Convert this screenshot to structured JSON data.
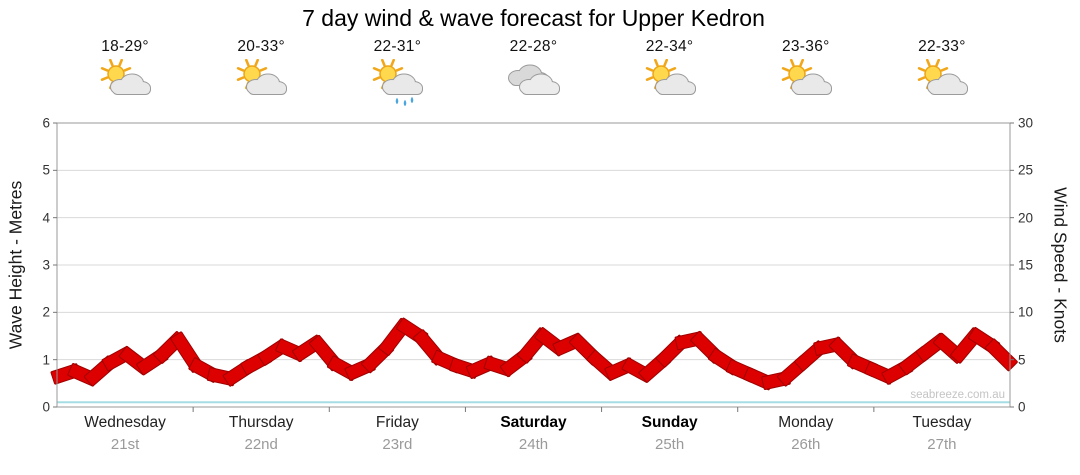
{
  "title": "7 day wind & wave forecast for Upper Kedron",
  "watermark": "seabreeze.com.au",
  "colors": {
    "wind_band": "#dd0000",
    "wind_band_outline": "#9e0000",
    "wave_line": "#a5dde4",
    "grid": "#d9d9d9",
    "border": "#999999",
    "tick": "#777777"
  },
  "days": [
    {
      "label": "Wednesday",
      "date": "21st",
      "temps": "18-29°",
      "icon": "sun-cloud",
      "weekend": false
    },
    {
      "label": "Thursday",
      "date": "22nd",
      "temps": "20-33°",
      "icon": "sun-cloud",
      "weekend": false
    },
    {
      "label": "Friday",
      "date": "23rd",
      "temps": "22-31°",
      "icon": "sun-cloud-rain",
      "weekend": false
    },
    {
      "label": "Saturday",
      "date": "24th",
      "temps": "22-28°",
      "icon": "cloudy",
      "weekend": true
    },
    {
      "label": "Sunday",
      "date": "25th",
      "temps": "22-34°",
      "icon": "sun-cloud",
      "weekend": true
    },
    {
      "label": "Monday",
      "date": "26th",
      "temps": "23-36°",
      "icon": "sun-cloud",
      "weekend": false
    },
    {
      "label": "Tuesday",
      "date": "27th",
      "temps": "22-33°",
      "icon": "sun-cloud",
      "weekend": false
    }
  ],
  "chart_data": {
    "type": "line",
    "title": "7 day wind & wave forecast for Upper Kedron",
    "categories": [
      "Wednesday 21st",
      "Thursday 22nd",
      "Friday 23rd",
      "Saturday 24th",
      "Sunday 25th",
      "Monday 26th",
      "Tuesday 27th"
    ],
    "ylabel_left": "Wave Height - Metres",
    "ylabel_right": "Wind Speed - Knots",
    "ylim_left": [
      0,
      6
    ],
    "ylim_right": [
      0,
      30
    ],
    "yticks_left": [
      0,
      1,
      2,
      3,
      4,
      5,
      6
    ],
    "yticks_right": [
      0,
      5,
      10,
      15,
      20,
      25,
      30
    ],
    "grid": "horizontal",
    "legend": "none",
    "series": [
      {
        "name": "Wind Speed",
        "axis": "right",
        "unit": "knots",
        "color": "#dd0000",
        "style": "feather-band",
        "values": [
          3.2,
          3.8,
          3.0,
          4.6,
          5.6,
          4.2,
          5.4,
          7.2,
          4.4,
          3.4,
          3.0,
          4.2,
          5.2,
          6.4,
          5.6,
          6.8,
          4.6,
          3.6,
          4.4,
          6.2,
          8.6,
          7.4,
          5.2,
          4.4,
          3.8,
          4.6,
          4.0,
          5.4,
          7.6,
          6.2,
          7.0,
          5.2,
          3.6,
          4.4,
          3.4,
          5.0,
          6.8,
          7.2,
          5.4,
          4.2,
          3.4,
          2.6,
          3.0,
          4.6,
          6.2,
          6.6,
          4.8,
          4.0,
          3.2,
          4.2,
          5.6,
          7.0,
          5.4,
          7.6,
          6.4,
          4.6
        ]
      },
      {
        "name": "Wave Height",
        "axis": "left",
        "unit": "metres",
        "color": "#a5dde4",
        "style": "line",
        "values": [
          0.1,
          0.1,
          0.1,
          0.1,
          0.1,
          0.1,
          0.1,
          0.1
        ]
      }
    ]
  }
}
